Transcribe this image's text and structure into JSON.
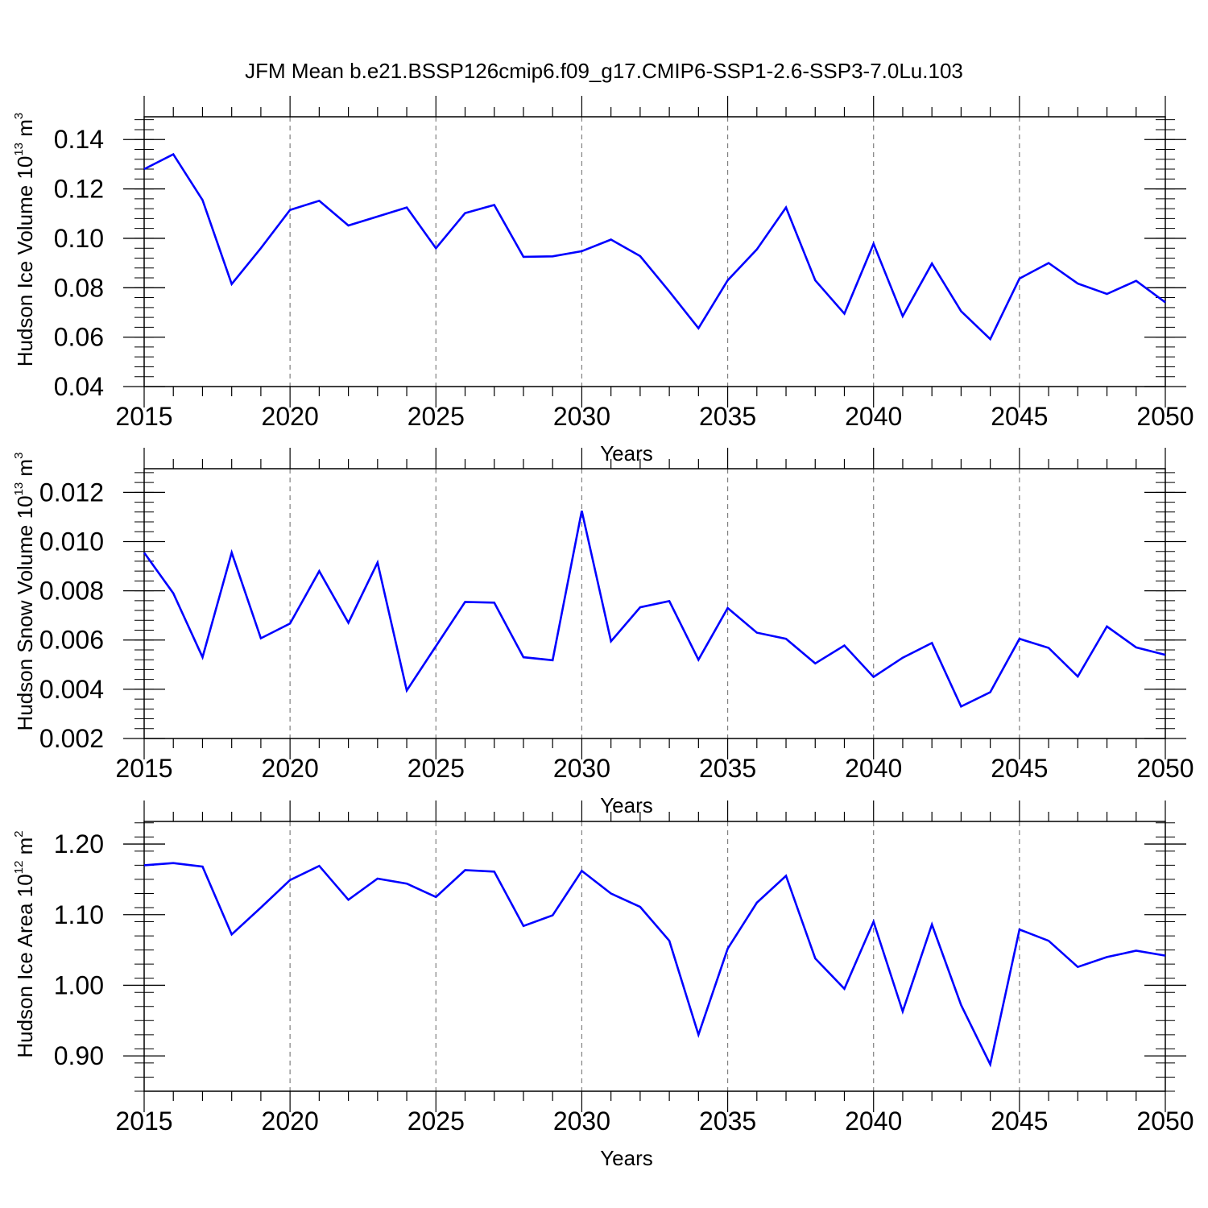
{
  "figure_title": "JFM Mean b.e21.BSSP126cmip6.f09_g17.CMIP6-SSP1-2.6-SSP3-7.0Lu.103",
  "colors": {
    "line": "#0000ff",
    "axis": "#000000",
    "grid": "#808080"
  },
  "chart_data": [
    {
      "type": "line",
      "title": "",
      "xlabel": "Years",
      "ylabel": {
        "prefix": "Hudson Ice Volume 10",
        "exp1": "13",
        "mid": " m",
        "exp2": "3"
      },
      "xlim": [
        2015,
        2050
      ],
      "ylim": [
        0.04,
        0.1492
      ],
      "yticks": [
        0.04,
        0.06,
        0.08,
        0.1,
        0.12,
        0.14
      ],
      "ytick_labels": [
        "0.04",
        "0.06",
        "0.08",
        "0.10",
        "0.12",
        "0.14"
      ],
      "yminor_step": 0.004,
      "xticks": [
        2015,
        2020,
        2025,
        2030,
        2035,
        2040,
        2045,
        2050
      ],
      "xtick_labels": [
        "2015",
        "2020",
        "2025",
        "2030",
        "2035",
        "2040",
        "2045",
        "2050"
      ],
      "grid": "vertical dashed at major x ticks",
      "series": [
        {
          "name": "Hudson Ice Volume",
          "x": [
            2015,
            2016,
            2017,
            2018,
            2019,
            2020,
            2021,
            2022,
            2023,
            2024,
            2025,
            2026,
            2027,
            2028,
            2029,
            2030,
            2031,
            2032,
            2033,
            2034,
            2035,
            2036,
            2037,
            2038,
            2039,
            2040,
            2041,
            2042,
            2043,
            2044,
            2045,
            2046,
            2047,
            2048,
            2049,
            2050
          ],
          "values": [
            0.128,
            0.134,
            0.1155,
            0.0815,
            0.096,
            0.1115,
            0.1152,
            0.1052,
            0.1088,
            0.1125,
            0.096,
            0.1102,
            0.1135,
            0.0925,
            0.0927,
            0.0948,
            0.0995,
            0.0928,
            0.0785,
            0.0636,
            0.083,
            0.0955,
            0.1125,
            0.083,
            0.0695,
            0.0978,
            0.0685,
            0.0898,
            0.0705,
            0.0592,
            0.0837,
            0.09,
            0.0817,
            0.0775,
            0.0828,
            0.0741
          ]
        }
      ]
    },
    {
      "type": "line",
      "title": "",
      "xlabel": "Years",
      "ylabel": {
        "prefix": "Hudson Snow Volume 10",
        "exp1": "13",
        "mid": " m",
        "exp2": "3"
      },
      "xlim": [
        2015,
        2050
      ],
      "ylim": [
        0.002,
        0.01296
      ],
      "yticks": [
        0.002,
        0.004,
        0.006,
        0.008,
        0.01,
        0.012
      ],
      "ytick_labels": [
        "0.002",
        "0.004",
        "0.006",
        "0.008",
        "0.010",
        "0.012"
      ],
      "yminor_step": 0.0004,
      "xticks": [
        2015,
        2020,
        2025,
        2030,
        2035,
        2040,
        2045,
        2050
      ],
      "xtick_labels": [
        "2015",
        "2020",
        "2025",
        "2030",
        "2035",
        "2040",
        "2045",
        "2050"
      ],
      "grid": "vertical dashed at major x ticks",
      "series": [
        {
          "name": "Hudson Snow Volume",
          "x": [
            2015,
            2016,
            2017,
            2018,
            2019,
            2020,
            2021,
            2022,
            2023,
            2024,
            2025,
            2026,
            2027,
            2028,
            2029,
            2030,
            2031,
            2032,
            2033,
            2034,
            2035,
            2036,
            2037,
            2038,
            2039,
            2040,
            2041,
            2042,
            2043,
            2044,
            2045,
            2046,
            2047,
            2048,
            2049,
            2050
          ],
          "values": [
            0.00955,
            0.0079,
            0.0053,
            0.00955,
            0.00607,
            0.00667,
            0.0088,
            0.0067,
            0.00915,
            0.00395,
            0.00575,
            0.00755,
            0.00752,
            0.0053,
            0.00518,
            0.01125,
            0.00595,
            0.00733,
            0.00758,
            0.0052,
            0.0073,
            0.0063,
            0.00605,
            0.00505,
            0.00578,
            0.0045,
            0.00528,
            0.00588,
            0.0033,
            0.00388,
            0.00605,
            0.00568,
            0.00452,
            0.00655,
            0.0057,
            0.0054
          ]
        }
      ]
    },
    {
      "type": "line",
      "title": "",
      "xlabel": "Years",
      "ylabel": {
        "prefix": "Hudson Ice Area 10",
        "exp1": "12",
        "mid": " m",
        "exp2": "2"
      },
      "xlim": [
        2015,
        2050
      ],
      "ylim": [
        0.85,
        1.232
      ],
      "yticks": [
        0.9,
        1.0,
        1.1,
        1.2
      ],
      "ytick_labels": [
        "0.90",
        "1.00",
        "1.10",
        "1.20"
      ],
      "yminor_step": 0.02,
      "xticks": [
        2015,
        2020,
        2025,
        2030,
        2035,
        2040,
        2045,
        2050
      ],
      "xtick_labels": [
        "2015",
        "2020",
        "2025",
        "2030",
        "2035",
        "2040",
        "2045",
        "2050"
      ],
      "grid": "vertical dashed at major x ticks",
      "series": [
        {
          "name": "Hudson Ice Area",
          "x": [
            2015,
            2016,
            2017,
            2018,
            2019,
            2020,
            2021,
            2022,
            2023,
            2024,
            2025,
            2026,
            2027,
            2028,
            2029,
            2030,
            2031,
            2032,
            2033,
            2034,
            2035,
            2036,
            2037,
            2038,
            2039,
            2040,
            2041,
            2042,
            2043,
            2044,
            2045,
            2046,
            2047,
            2048,
            2049,
            2050
          ],
          "values": [
            1.17,
            1.173,
            1.168,
            1.072,
            1.11,
            1.149,
            1.169,
            1.121,
            1.151,
            1.144,
            1.125,
            1.163,
            1.161,
            1.084,
            1.099,
            1.162,
            1.13,
            1.111,
            1.063,
            0.93,
            1.052,
            1.117,
            1.155,
            1.038,
            0.995,
            1.09,
            0.963,
            1.086,
            0.972,
            0.888,
            1.079,
            1.063,
            1.026,
            1.04,
            1.049,
            1.042
          ]
        }
      ]
    }
  ]
}
